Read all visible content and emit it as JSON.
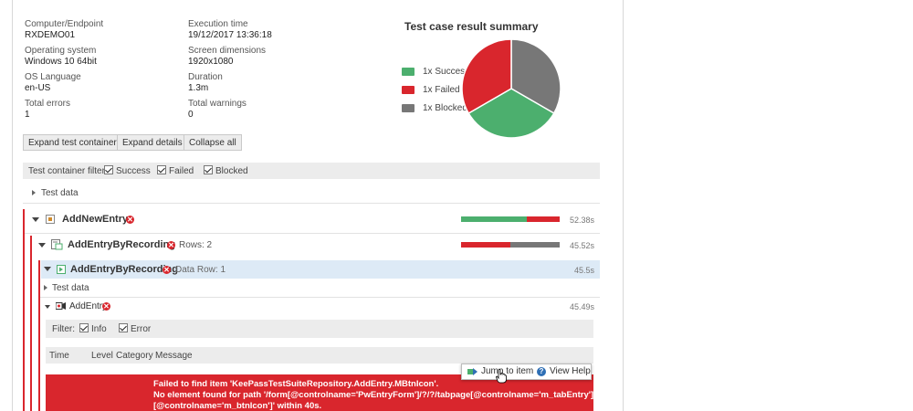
{
  "info": {
    "computer_label": "Computer/Endpoint",
    "computer_value": "RXDEMO01",
    "os_label": "Operating system",
    "os_value": "Windows 10 64bit",
    "lang_label": "OS Language",
    "lang_value": "en-US",
    "errors_label": "Total errors",
    "errors_value": "1",
    "exec_label": "Execution time",
    "exec_value": "19/12/2017 13:36:18",
    "screen_label": "Screen dimensions",
    "screen_value": "1920x1080",
    "duration_label": "Duration",
    "duration_value": "1.3m",
    "warnings_label": "Total warnings",
    "warnings_value": "0"
  },
  "summary": {
    "title": "Test case result summary",
    "legend": [
      {
        "label": "1x Success",
        "color": "#4caf6e"
      },
      {
        "label": "1x Failed",
        "color": "#d9262d"
      },
      {
        "label": "1x Blocked",
        "color": "#777777"
      }
    ]
  },
  "chart_data": {
    "type": "pie",
    "labels": [
      "Success",
      "Failed",
      "Blocked"
    ],
    "values": [
      1,
      1,
      1
    ],
    "colors": [
      "#4caf6e",
      "#d9262d",
      "#777777"
    ]
  },
  "toolbar": {
    "expand_containers": "Expand test containers",
    "expand_details": "Expand details",
    "collapse_all": "Collapse all"
  },
  "filter": {
    "label": "Test container filter:",
    "success": "Success",
    "failed": "Failed",
    "blocked": "Blocked"
  },
  "tree": {
    "test_data_1": "Test data",
    "add_new_entry": "AddNewEntry",
    "add_new_entry_duration": "52.38s",
    "add_entry_by_recording": "AddEntryByRecording",
    "rows_label": "Rows: 2",
    "add_entry_by_recording_duration": "45.52s",
    "add_entry_by_recording_row": "AddEntryByRecording",
    "data_row_label": "Data Row: 1",
    "add_entry_by_recording_row_duration": "45.5s",
    "test_data_2": "Test data",
    "add_entry": "AddEntry",
    "add_entry_duration": "45.49s"
  },
  "bars": {
    "add_new_entry": {
      "success": 0.67,
      "failed": 0.33,
      "blocked": 0
    },
    "add_entry_by_recording": {
      "success": 0,
      "failed": 0.5,
      "blocked": 0.5
    }
  },
  "log_filter": {
    "label": "Filter:",
    "info": "Info",
    "error": "Error"
  },
  "log_columns": {
    "time": "Time",
    "level": "Level",
    "category": "Category",
    "message": "Message"
  },
  "context_menu": {
    "jump": "Jump to item",
    "help": "View Help"
  },
  "error_message": {
    "line1": "Failed to find item 'KeePassTestSuiteRepository.AddEntry.MBtnIcon'.",
    "line2": "No element found for path '/form[@controlname='PwEntryForm']/?/?/tabpage[@controlname='m_tabEntry']/button",
    "line3": "[@controlname='m_btnIcon']' within 40s."
  }
}
